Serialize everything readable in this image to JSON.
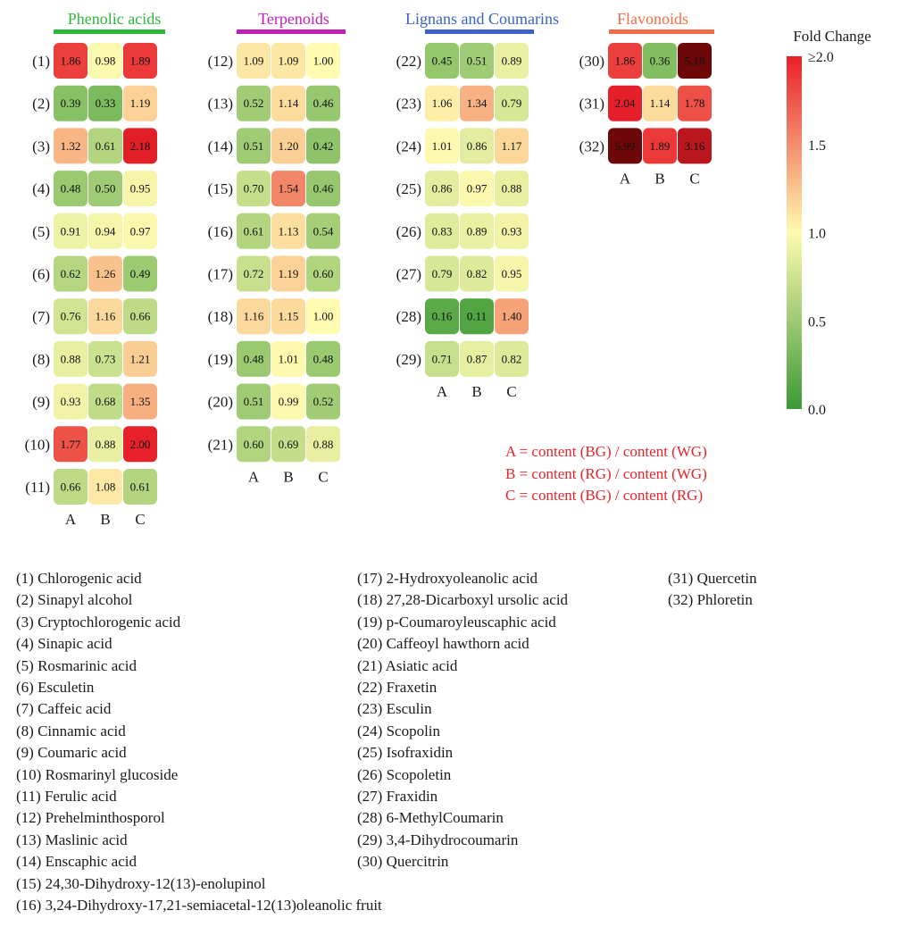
{
  "chart_data": {
    "type": "heatmap",
    "column_labels": [
      "A",
      "B",
      "C"
    ],
    "colorbar": {
      "title": "Fold Change",
      "ticks": [
        "≥2.0",
        "1.5",
        "1.0",
        "0.5",
        "0.0"
      ],
      "tick_values": [
        2.0,
        1.5,
        1.0,
        0.5,
        0.0
      ],
      "range": [
        0,
        2
      ],
      "colors": [
        "#3c9a35",
        "#fffbb0",
        "#e8202a"
      ]
    },
    "groups": [
      {
        "title": "Phenolic acids",
        "title_color": "#2db83b",
        "rows": [
          {
            "label": "(1)",
            "values": [
              1.86,
              0.98,
              1.89
            ]
          },
          {
            "label": "(2)",
            "values": [
              0.39,
              0.33,
              1.19
            ]
          },
          {
            "label": "(3)",
            "values": [
              1.32,
              0.61,
              2.18
            ]
          },
          {
            "label": "(4)",
            "values": [
              0.48,
              0.5,
              0.95
            ]
          },
          {
            "label": "(5)",
            "values": [
              0.91,
              0.94,
              0.97
            ]
          },
          {
            "label": "(6)",
            "values": [
              0.62,
              1.26,
              0.49
            ]
          },
          {
            "label": "(7)",
            "values": [
              0.76,
              1.16,
              0.66
            ]
          },
          {
            "label": "(8)",
            "values": [
              0.88,
              0.73,
              1.21
            ]
          },
          {
            "label": "(9)",
            "values": [
              0.93,
              0.68,
              1.35
            ]
          },
          {
            "label": "(10)",
            "values": [
              1.77,
              0.88,
              2.0
            ]
          },
          {
            "label": "(11)",
            "values": [
              0.66,
              1.08,
              0.61
            ]
          }
        ]
      },
      {
        "title": "Terpenoids",
        "title_color": "#c21fb8",
        "rows": [
          {
            "label": "(12)",
            "values": [
              1.09,
              1.09,
              1.0
            ]
          },
          {
            "label": "(13)",
            "values": [
              0.52,
              1.14,
              0.46
            ]
          },
          {
            "label": "(14)",
            "values": [
              0.51,
              1.2,
              0.42
            ]
          },
          {
            "label": "(15)",
            "values": [
              0.7,
              1.54,
              0.46
            ]
          },
          {
            "label": "(16)",
            "values": [
              0.61,
              1.13,
              0.54
            ]
          },
          {
            "label": "(17)",
            "values": [
              0.72,
              1.19,
              0.6
            ]
          },
          {
            "label": "(18)",
            "values": [
              1.16,
              1.15,
              1.0
            ]
          },
          {
            "label": "(19)",
            "values": [
              0.48,
              1.01,
              0.48
            ]
          },
          {
            "label": "(20)",
            "values": [
              0.51,
              0.99,
              0.52
            ]
          },
          {
            "label": "(21)",
            "values": [
              0.6,
              0.69,
              0.88
            ]
          }
        ]
      },
      {
        "title": "Lignans and Coumarins",
        "title_color": "#3b62c4",
        "rows": [
          {
            "label": "(22)",
            "values": [
              0.45,
              0.51,
              0.89
            ]
          },
          {
            "label": "(23)",
            "values": [
              1.06,
              1.34,
              0.79
            ]
          },
          {
            "label": "(24)",
            "values": [
              1.01,
              0.86,
              1.17
            ]
          },
          {
            "label": "(25)",
            "values": [
              0.86,
              0.97,
              0.88
            ]
          },
          {
            "label": "(26)",
            "values": [
              0.83,
              0.89,
              0.93
            ]
          },
          {
            "label": "(27)",
            "values": [
              0.79,
              0.82,
              0.95
            ]
          },
          {
            "label": "(28)",
            "values": [
              0.16,
              0.11,
              1.4
            ]
          },
          {
            "label": "(29)",
            "values": [
              0.71,
              0.87,
              0.82
            ]
          }
        ]
      },
      {
        "title": "Flavonoids",
        "title_color": "#f26d45",
        "rows": [
          {
            "label": "(30)",
            "values": [
              1.86,
              0.36,
              5.18
            ]
          },
          {
            "label": "(31)",
            "values": [
              2.04,
              1.14,
              1.78
            ]
          },
          {
            "label": "(32)",
            "values": [
              5.99,
              1.89,
              3.16
            ]
          }
        ]
      }
    ],
    "notes": [
      "A = content (BG) / content (WG)",
      "B = content (RG) / content (WG)",
      "C = content (BG) / content (RG)"
    ],
    "notes_color": "#e8232a",
    "compound_legend": [
      "(1) Chlorogenic acid",
      "(2) Sinapyl alcohol",
      "(3) Cryptochlorogenic acid",
      "(4) Sinapic acid",
      "(5) Rosmarinic acid",
      "(6) Esculetin",
      "(7) Caffeic acid",
      "(8) Cinnamic acid",
      "(9) Coumaric acid",
      "(10) Rosmarinyl glucoside",
      "(11) Ferulic acid",
      "(12) Prehelminthosporol",
      "(13) Maslinic acid",
      "(14) Enscaphic acid",
      "(15) 24,30-Dihydroxy-12(13)-enolupinol",
      "(16) 3,24-Dihydroxy-17,21-semiacetal-12(13)oleanolic fruit",
      "(17) 2-Hydroxyoleanolic acid",
      "(18) 27,28-Dicarboxyl ursolic acid",
      "(19) p-Coumaroyleuscaphic acid",
      "(20) Caffeoyl hawthorn acid",
      "(21) Asiatic acid",
      "(22) Fraxetin",
      "(23) Esculin",
      "(24) Scopolin",
      "(25) Isofraxidin",
      "(26) Scopoletin",
      "(27) Fraxidin",
      "(28) 6-MethylCoumarin",
      "(29) 3,4-Dihydrocoumarin",
      "(30) Quercitrin",
      "(31) Quercetin",
      "(32) Phloretin"
    ]
  }
}
